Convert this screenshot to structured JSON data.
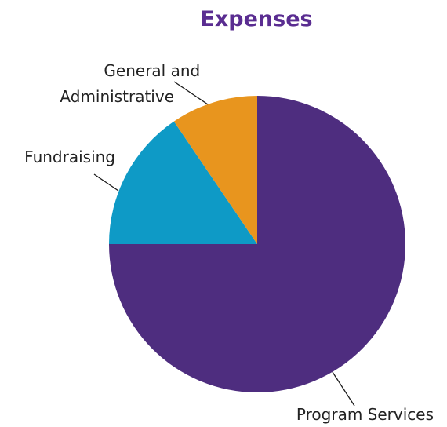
{
  "chart_data": {
    "type": "pie",
    "title": "Expenses",
    "start_angle_deg": 0,
    "direction": "clockwise",
    "slices": [
      {
        "label": "Program Services",
        "value": 75,
        "color": "#4e2d7f"
      },
      {
        "label": "Fundraising",
        "value": 15.5,
        "color": "#0e9ac6"
      },
      {
        "label": "General and Administrative",
        "value": 9.5,
        "color": "#e8951e"
      }
    ],
    "legend": "none",
    "colors": {
      "title": "#5a2d91",
      "label_text": "#222222",
      "leader_line": "#1a1a1a",
      "background": "#ffffff"
    }
  }
}
